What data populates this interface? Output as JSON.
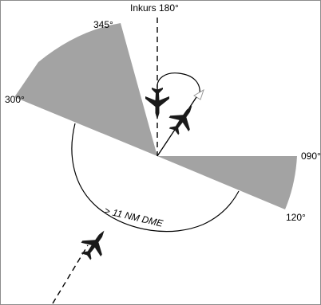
{
  "labels": {
    "inbound_course": "Inkurs 180°",
    "deg_345": "345°",
    "deg_300": "300°",
    "deg_090": "090°",
    "deg_120": "120°",
    "distance": "> 11 NM DME"
  },
  "colors": {
    "sector_fill": "#a3a3a3",
    "ink": "#000000",
    "border": "#8c8c8c",
    "aircraft": "#1a1a1a",
    "arrowhead_outline": "#9a9a9a"
  },
  "icons": [
    "aircraft-icon",
    "arrowhead-icon"
  ]
}
